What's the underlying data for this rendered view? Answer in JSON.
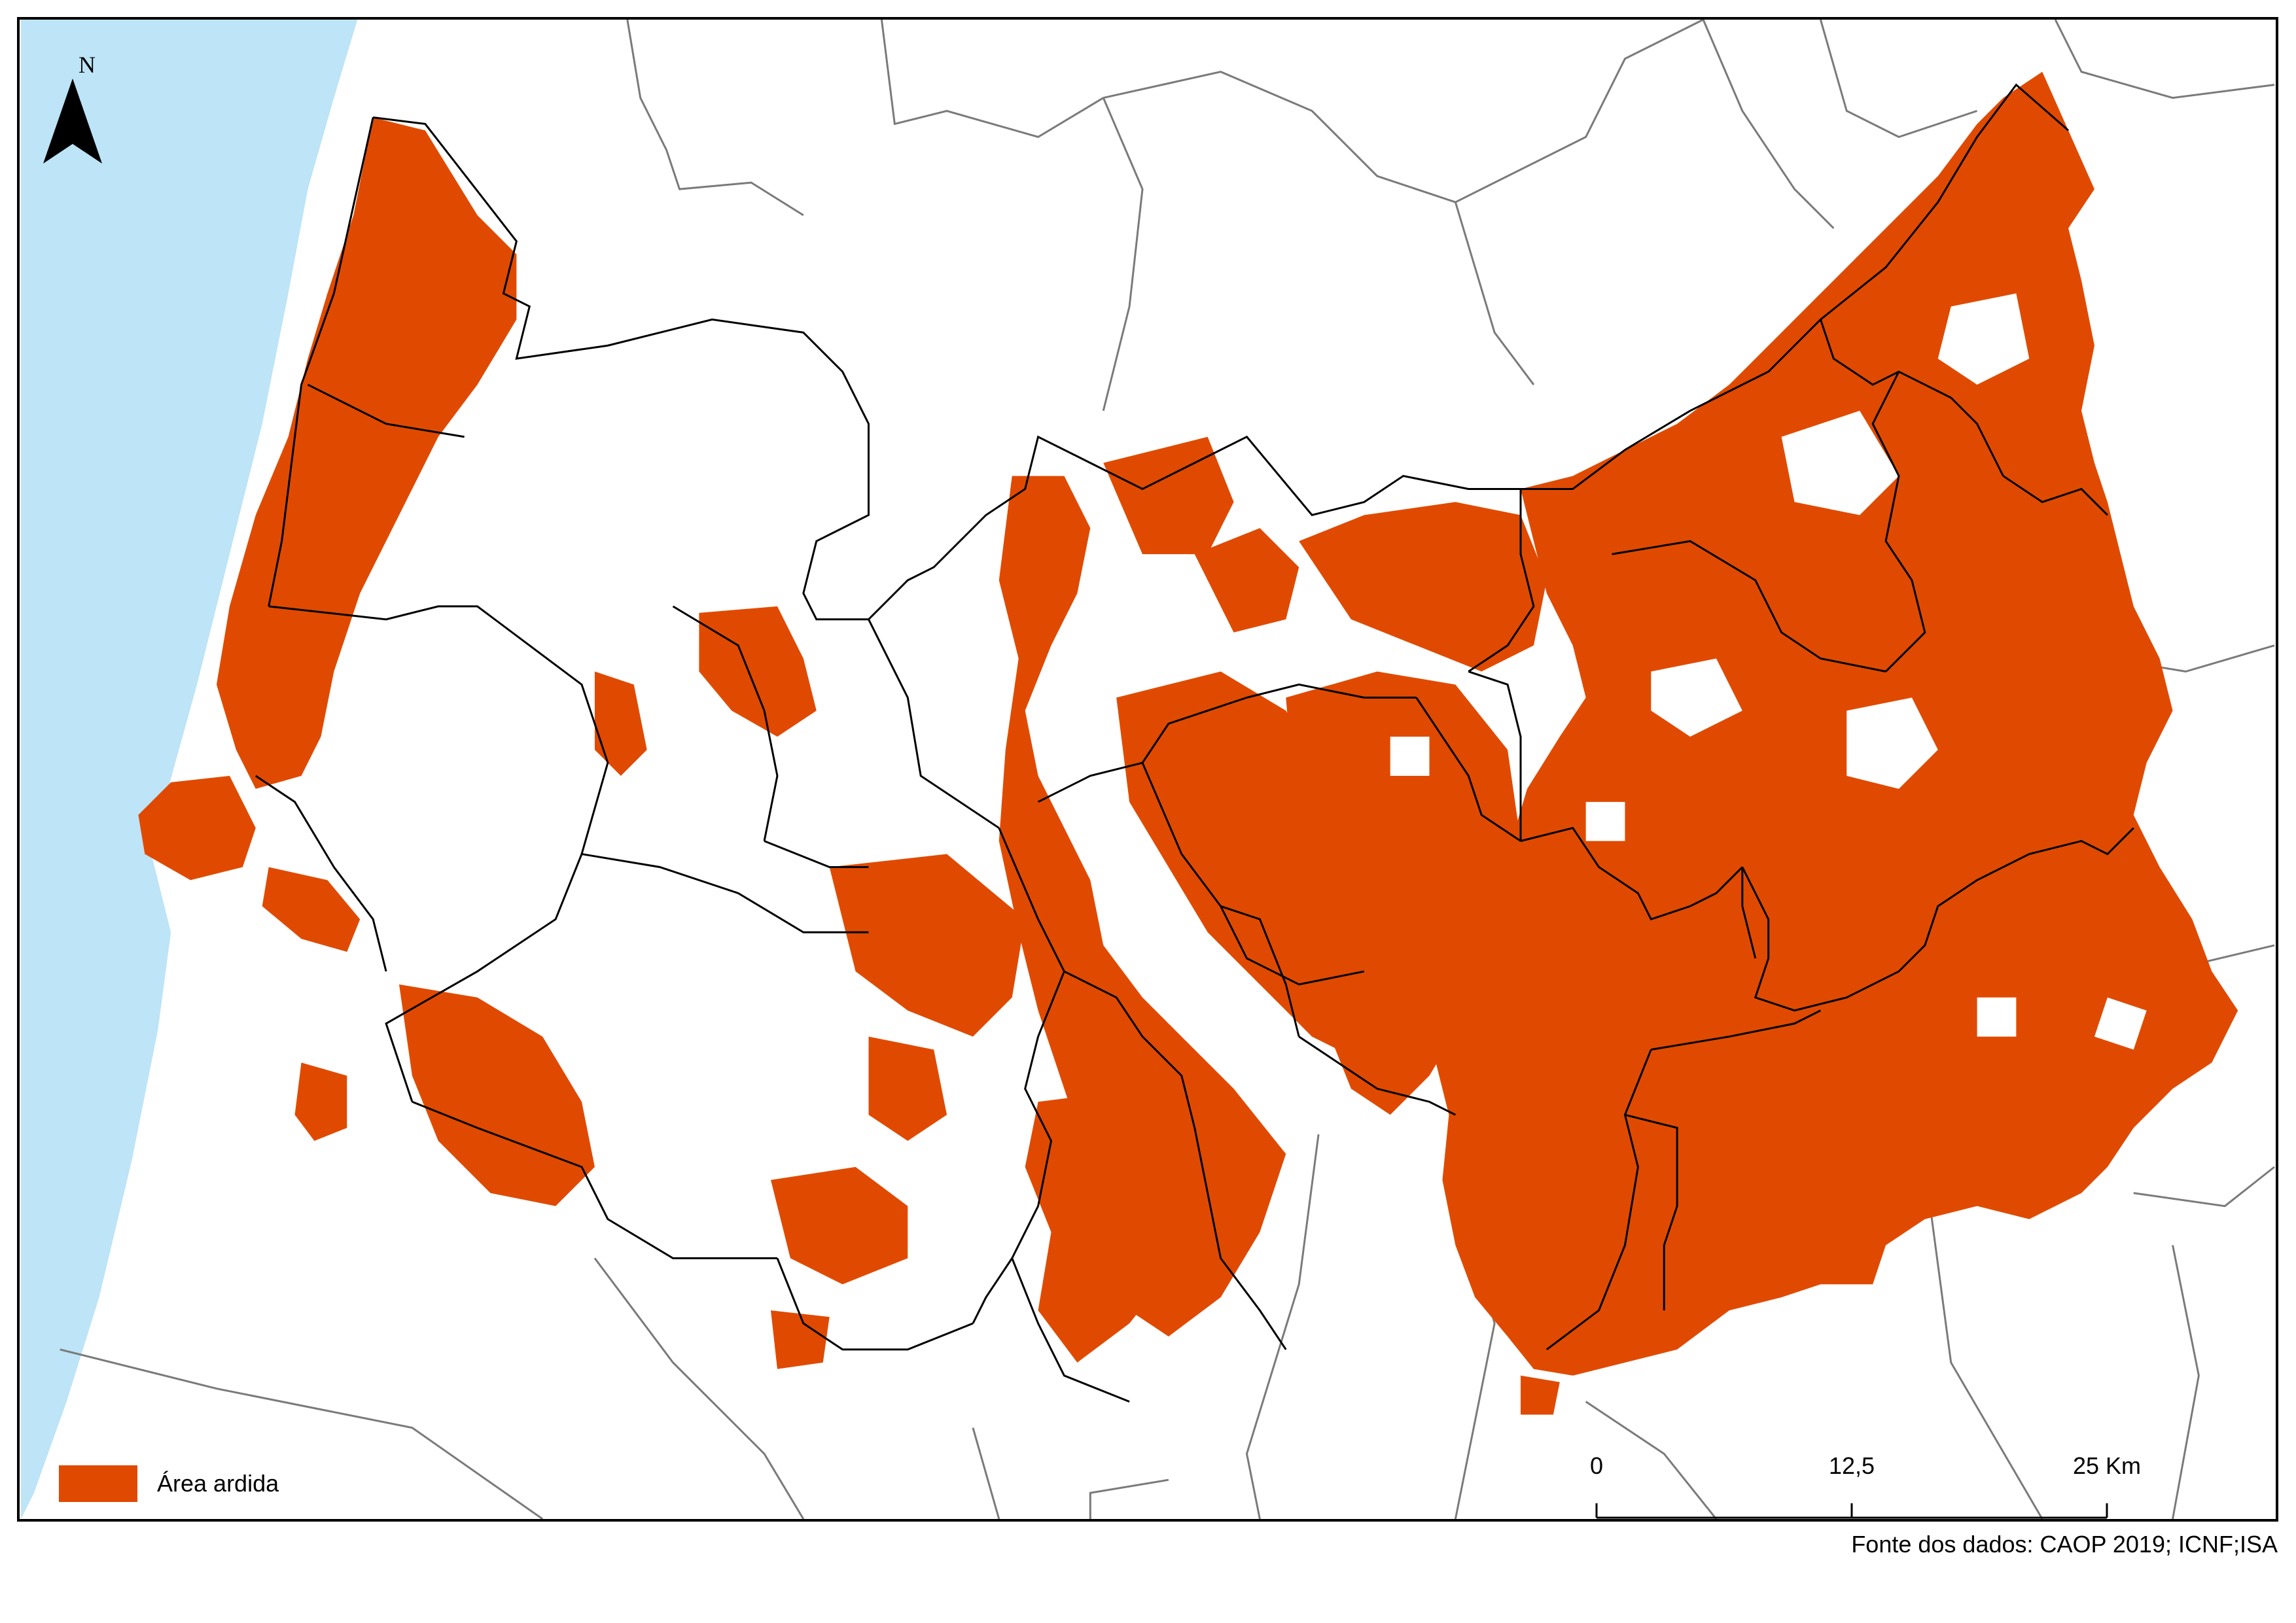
{
  "map": {
    "north_label": "N",
    "legend_label": "Área ardida",
    "scale_labels": [
      "0",
      "12,5",
      "25 Km"
    ],
    "source_text": "Fonte dos dados: CAOP 2019; ICNF;ISA"
  },
  "colors": {
    "sea": "#bde4f7",
    "burned": "#e04a00",
    "boundary_outer": "#7a7a7a",
    "boundary_inner": "#000000"
  },
  "icons": [
    "north-arrow-icon"
  ]
}
